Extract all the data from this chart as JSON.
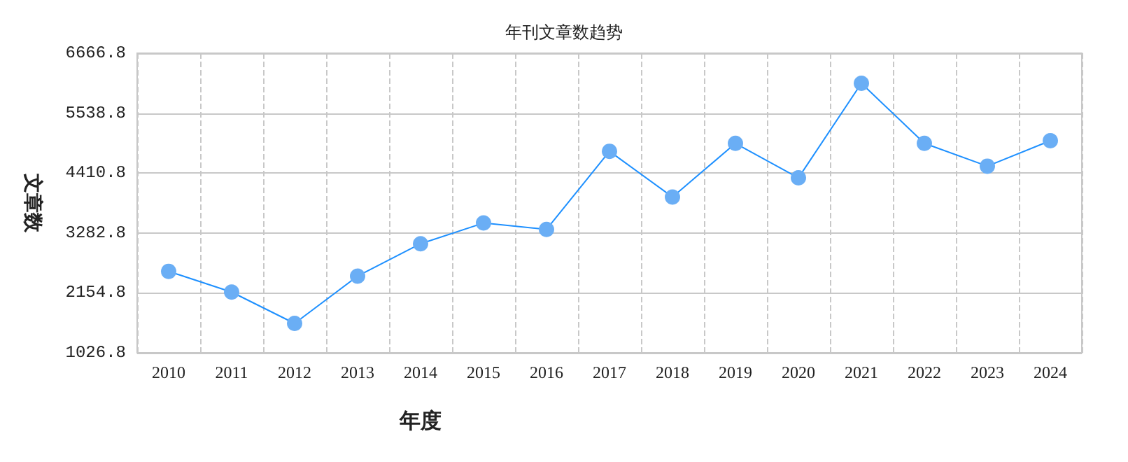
{
  "chart_data": {
    "type": "line",
    "title": "年刊文章数趋势",
    "xlabel": "年度",
    "ylabel": "文章数",
    "categories": [
      "2010",
      "2011",
      "2012",
      "2013",
      "2014",
      "2015",
      "2016",
      "2017",
      "2018",
      "2019",
      "2020",
      "2021",
      "2022",
      "2023",
      "2024"
    ],
    "series": [
      {
        "color": "#1e90ff",
        "values": [
          2560,
          2170,
          1580,
          2470,
          3080,
          3470,
          3350,
          4820,
          3960,
          4970,
          4320,
          6100,
          4970,
          4540,
          5020
        ]
      }
    ],
    "ylim": [
      1026.8,
      6666.8
    ],
    "yticks": [
      1026.8,
      2154.8,
      3282.8,
      4410.8,
      5538.8,
      6666.8
    ],
    "grid": true,
    "marker": "circle",
    "line_style": "solid"
  }
}
